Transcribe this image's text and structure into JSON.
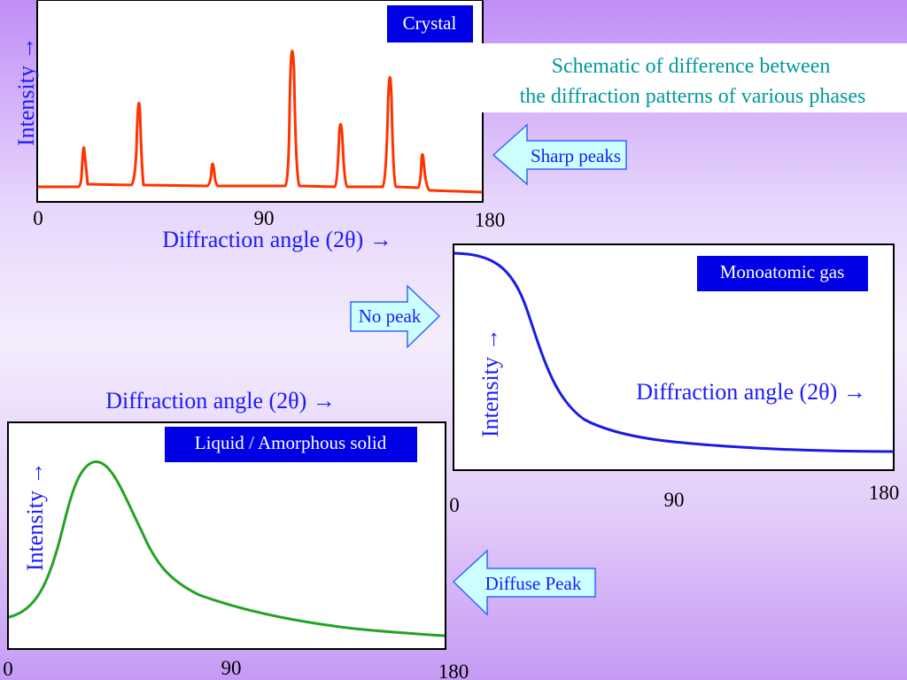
{
  "caption": {
    "line1": "Schematic of difference between",
    "line2": "the diffraction patterns of various phases"
  },
  "colors": {
    "blue_text": "#1a1aff",
    "teal_text": "#009999",
    "badge_bg": "#0000e6",
    "arrow_fill": "#ccffff",
    "arrow_stroke": "#3366ff",
    "crystal_line": "#ff3300",
    "gas_line": "#1a1ae6",
    "liquid_line": "#22a322"
  },
  "panels": {
    "crystal": {
      "badge": "Crystal",
      "ylabel": "Intensity  →",
      "xlabel": "Diffraction angle (2θ)  →",
      "ticks": [
        "0",
        "90",
        "180"
      ],
      "arrow": "Sharp peaks"
    },
    "gas": {
      "badge": "Monoatomic gas",
      "ylabel": "Intensity  →",
      "xlabel": "Diffraction angle (2θ)  →",
      "ticks": [
        "0",
        "90",
        "180"
      ],
      "arrow": "No peak"
    },
    "liquid": {
      "badge": "Liquid / Amorphous solid",
      "ylabel": "Intensity  →",
      "xlabel": "Diffraction angle (2θ)  →",
      "ticks": [
        "0",
        "90",
        "180"
      ],
      "arrow": "Diffuse Peak"
    }
  }
}
